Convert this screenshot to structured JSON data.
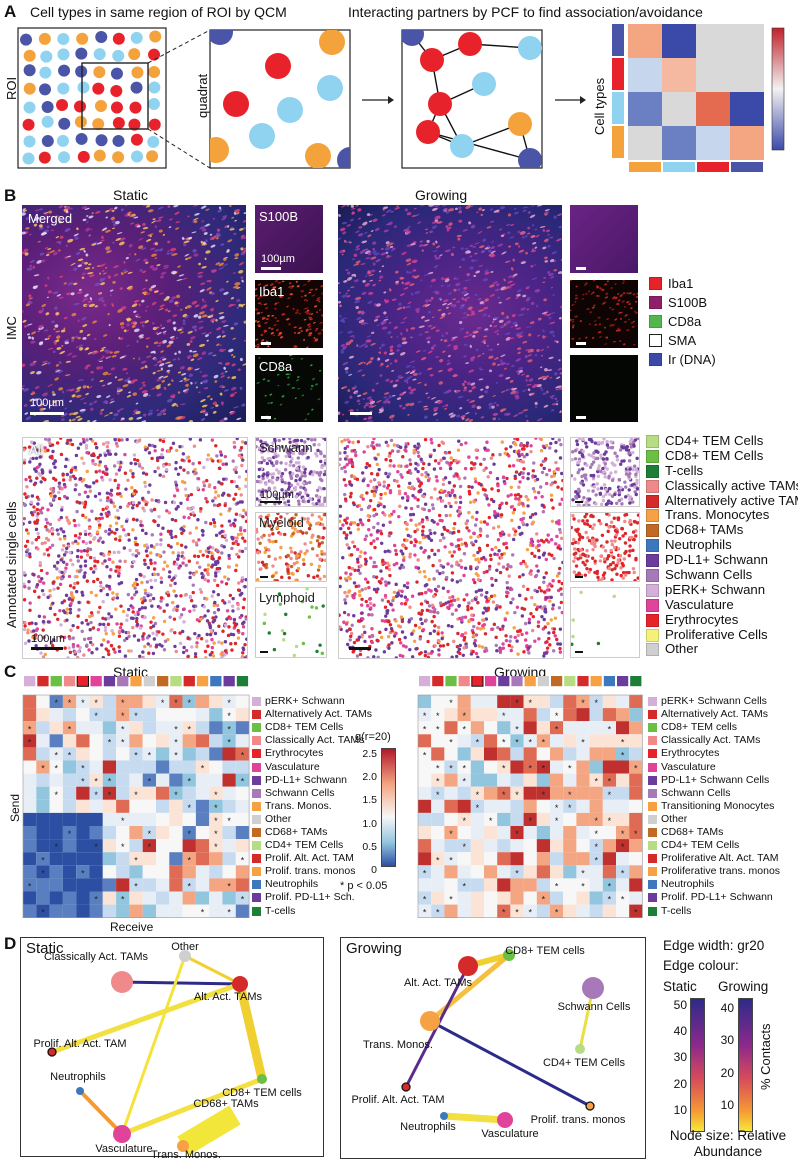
{
  "panel_labels": {
    "a": "A",
    "b": "B",
    "c": "C",
    "d": "D"
  },
  "panel_a": {
    "title_left": "Cell types in same region of ROI by QCM",
    "title_right": "Interacting partners by PCF to find association/avoidance",
    "roi_label": "ROI",
    "quadrat_label": "quadrat",
    "celltypes_label": "Cell types",
    "colors": {
      "red": "#e8222a",
      "blue": "#4b55a8",
      "orange": "#f4a23c",
      "light": "#8fd3f0"
    }
  },
  "panel_b": {
    "static_title": "Static",
    "growing_title": "Growing",
    "imc_label": "IMC",
    "annot_label": "Annotated single cells",
    "merged_label": "Merged",
    "s100b_label": "S100B",
    "iba1_label": "Iba1",
    "cd8a_label": "CD8a",
    "scale_label": "100µm",
    "all_label": "All",
    "schwann_label": "Schwann",
    "myeloid_label": "Myeloid",
    "lymphoid_label": "Lymphoid",
    "imc_legend": [
      {
        "label": "Iba1",
        "color": "#e8222a"
      },
      {
        "label": "S100B",
        "color": "#8e1f6b"
      },
      {
        "label": "CD8a",
        "color": "#4fb848"
      },
      {
        "label": "SMA",
        "color": "#ffffff"
      },
      {
        "label": "Ir (DNA)",
        "color": "#3b4aa8"
      }
    ],
    "cell_legend": [
      {
        "label": "CD4+ TEM Cells",
        "color": "#b6dc84"
      },
      {
        "label": "CD8+ TEM Cells",
        "color": "#6cbf45"
      },
      {
        "label": "T-cells",
        "color": "#1d7f37"
      },
      {
        "label": "Classically active TAMs",
        "color": "#f08a8a"
      },
      {
        "label": "Alternatively active TAMs",
        "color": "#d42a2a"
      },
      {
        "label": "Trans. Monocytes",
        "color": "#f7a145"
      },
      {
        "label": "CD68+ TAMs",
        "color": "#c06a25"
      },
      {
        "label": "Neutrophils",
        "color": "#3d78bf"
      },
      {
        "label": "PD-L1+ Schwann",
        "color": "#6b3c9c"
      },
      {
        "label": "Schwann Cells",
        "color": "#a779b8"
      },
      {
        "label": "pERK+ Schwann",
        "color": "#d4b0d8"
      },
      {
        "label": "Vasculature",
        "color": "#e0449a"
      },
      {
        "label": "Erythrocytes",
        "color": "#e8222a"
      },
      {
        "label": "Proliferative Cells",
        "color": "#f5f07a"
      },
      {
        "label": "Other",
        "color": "#cfcfcf"
      }
    ]
  },
  "panel_c": {
    "static_title": "Static",
    "growing_title": "Growing",
    "send_label": "Send",
    "receive_label": "Receive",
    "colorbar_title": "g(r=20)",
    "colorbar_ticks": [
      "2.5",
      "2.0",
      "1.5",
      "1.0",
      "0.5",
      "0"
    ],
    "pval_label": "* p < 0.05",
    "static_rows": [
      {
        "label": "pERK+ Schwann",
        "color": "#d4b0d8"
      },
      {
        "label": "Alternatively Act. TAMs",
        "color": "#d42a2a"
      },
      {
        "label": "CD8+ TEM Cells",
        "color": "#6cbf45"
      },
      {
        "label": "Classically Act. TAMs",
        "color": "#f08a8a"
      },
      {
        "label": "Erythrocytes",
        "color": "#e8222a"
      },
      {
        "label": "Vasculature",
        "color": "#e0449a"
      },
      {
        "label": "PD-L1+ Schwann",
        "color": "#6b3c9c"
      },
      {
        "label": "Schwann Cells",
        "color": "#a779b8"
      },
      {
        "label": "Trans. Monos.",
        "color": "#f7a145"
      },
      {
        "label": "Other",
        "color": "#cfcfcf"
      },
      {
        "label": "CD68+ TAMs",
        "color": "#c06a25"
      },
      {
        "label": "CD4+ TEM Cells",
        "color": "#b6dc84"
      },
      {
        "label": "Prolif. Alt. Act. TAM",
        "color": "#d42a2a"
      },
      {
        "label": "Prolif. trans. monos",
        "color": "#f7a145"
      },
      {
        "label": "Neutrophils",
        "color": "#3d78bf"
      },
      {
        "label": "Prolif. PD-L1+ Sch.",
        "color": "#6b3c9c"
      },
      {
        "label": "T-cells",
        "color": "#1d7f37"
      }
    ],
    "growing_rows": [
      {
        "label": "pERK+ Schwann Cells",
        "color": "#d4b0d8"
      },
      {
        "label": "Alternatively Act. TAMs",
        "color": "#d42a2a"
      },
      {
        "label": "CD8+ TEM cells",
        "color": "#6cbf45"
      },
      {
        "label": "Classically Act. TAMs",
        "color": "#f08a8a"
      },
      {
        "label": "Erythrocytes",
        "color": "#e8222a"
      },
      {
        "label": "Vasculature",
        "color": "#e0449a"
      },
      {
        "label": "PD-L1+ Schwann Cells",
        "color": "#6b3c9c"
      },
      {
        "label": "Schwann Cells",
        "color": "#a779b8"
      },
      {
        "label": "Transitioning Monocytes",
        "color": "#f7a145"
      },
      {
        "label": "Other",
        "color": "#cfcfcf"
      },
      {
        "label": "CD68+ TAMs",
        "color": "#c06a25"
      },
      {
        "label": "CD4+ TEM Cells",
        "color": "#b6dc84"
      },
      {
        "label": "Proliferative Alt. Act. TAM",
        "color": "#d42a2a"
      },
      {
        "label": "Proliferative trans. monos",
        "color": "#f7a145"
      },
      {
        "label": "Neutrophils",
        "color": "#3d78bf"
      },
      {
        "label": "Prolif. PD-L1+ Schwann",
        "color": "#6b3c9c"
      },
      {
        "label": "T-cells",
        "color": "#1d7f37"
      }
    ]
  },
  "panel_d": {
    "static_title": "Static",
    "growing_title": "Growing",
    "edge_width_label": "Edge width: gr20",
    "edge_colour_label": "Edge colour:",
    "cb_static_label": "Static",
    "cb_growing_label": "Growing",
    "static_ticks": [
      "50",
      "40",
      "30",
      "20",
      "10"
    ],
    "growing_ticks": [
      "40",
      "30",
      "20",
      "10"
    ],
    "contacts_label": "% Contacts",
    "node_size_label": "Node size: Relative Abundance",
    "static_nodes": [
      {
        "label": "Classically Act. TAMs",
        "color": "#f08a8a"
      },
      {
        "label": "Other",
        "color": "#cfcfcf"
      },
      {
        "label": "Alt. Act. TAMs",
        "color": "#d42a2a"
      },
      {
        "label": "Prolif. Alt. Act. TAM",
        "color": "#d42a2a"
      },
      {
        "label": "CD8+ TEM cells",
        "color": "#6cbf45"
      },
      {
        "label": "Neutrophils",
        "color": "#3d78bf"
      },
      {
        "label": "Vasculature",
        "color": "#e0449a"
      },
      {
        "label": "CD68+ TAMs",
        "color": "#c06a25"
      },
      {
        "label": "Trans. Monos.",
        "color": "#f7a145"
      }
    ],
    "growing_nodes": [
      {
        "label": "Alt. Act. TAMs",
        "color": "#d42a2a"
      },
      {
        "label": "CD8+ TEM cells",
        "color": "#6cbf45"
      },
      {
        "label": "Schwann Cells",
        "color": "#a779b8"
      },
      {
        "label": "Trans. Monos.",
        "color": "#f7a145"
      },
      {
        "label": "CD4+ TEM Cells",
        "color": "#b6dc84"
      },
      {
        "label": "Prolif. Alt. Act. TAM",
        "color": "#d42a2a"
      },
      {
        "label": "Prolif. trans. monos",
        "color": "#f7a145"
      },
      {
        "label": "Neutrophils",
        "color": "#3d78bf"
      },
      {
        "label": "Vasculature",
        "color": "#e0449a"
      }
    ]
  }
}
